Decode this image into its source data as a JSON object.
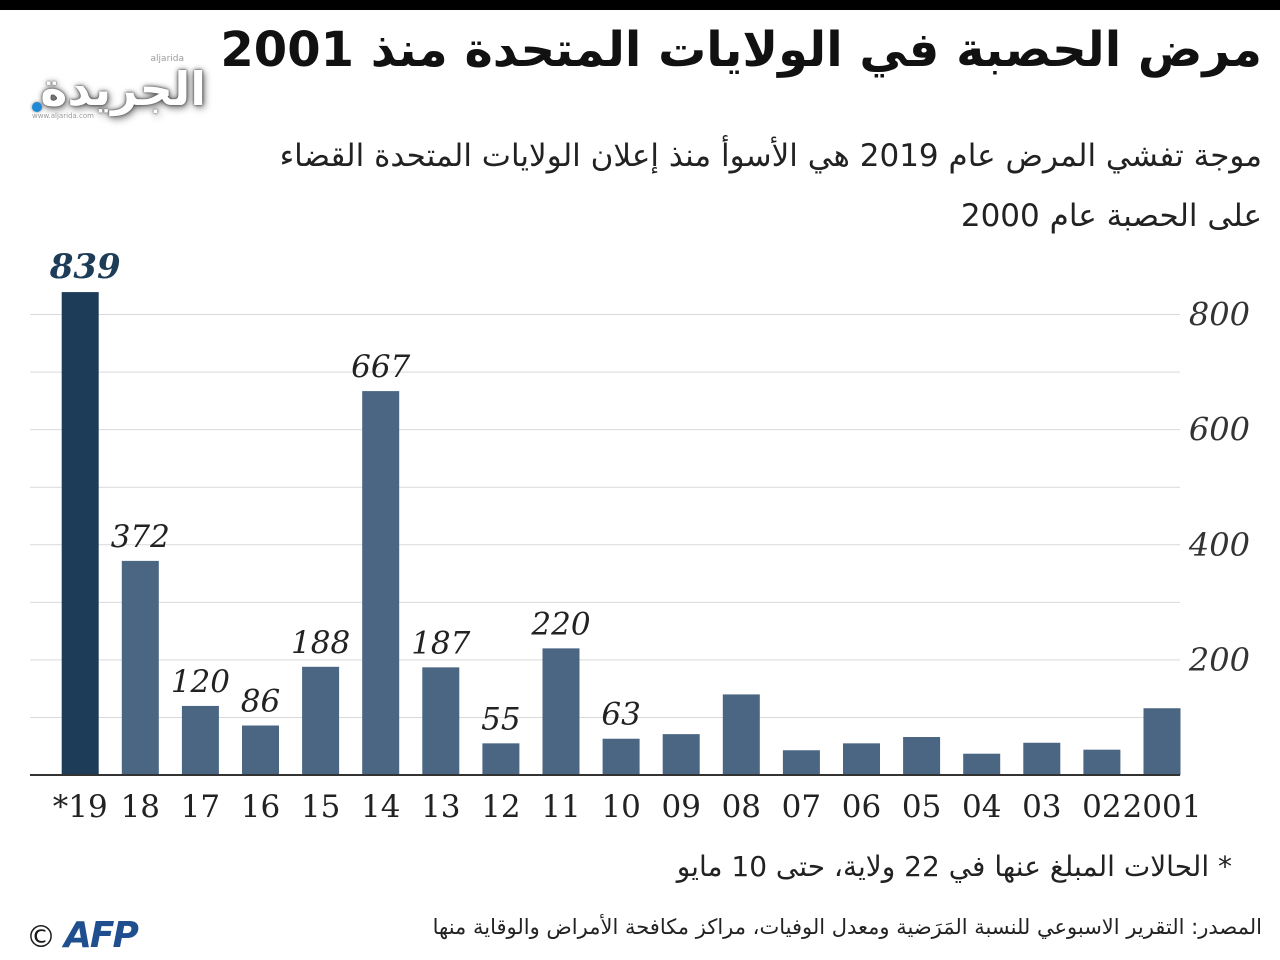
{
  "header": {
    "title": "مرض الحصبة في الولايات المتحدة منذ 2001",
    "subtitle": "موجة تفشي المرض عام 2019 هي الأسوأ منذ إعلان الولايات المتحدة القضاء على الحصبة عام 2000"
  },
  "logo": {
    "name": "الجريدة",
    "latin": "aljarida",
    "url": "www.aljarida.com"
  },
  "chart_data": {
    "type": "bar",
    "categories": [
      "2001",
      "02",
      "03",
      "04",
      "05",
      "06",
      "07",
      "08",
      "09",
      "10",
      "11",
      "12",
      "13",
      "14",
      "15",
      "16",
      "17",
      "18",
      "*19"
    ],
    "values": [
      116,
      44,
      56,
      37,
      66,
      55,
      43,
      140,
      71,
      63,
      220,
      55,
      187,
      667,
      188,
      86,
      120,
      372,
      839
    ],
    "data_labels": [
      "",
      "",
      "",
      "",
      "",
      "",
      "",
      "",
      "",
      "63",
      "220",
      "55",
      "187",
      "667",
      "188",
      "86",
      "120",
      "372",
      "839"
    ],
    "highlight_index": 18,
    "colors": {
      "bar": "#4a6683",
      "highlight": "#1d3c58",
      "grid": "#d9d9d9",
      "axis": "#333333"
    },
    "yticks": [
      "200",
      "400",
      "600",
      "800"
    ],
    "ylim": [
      0,
      860
    ],
    "y_axis_side": "right",
    "grid": true,
    "orientation": "rtl"
  },
  "footnote": "* الحالات المبلغ عنها في 22 ولاية، حتى 10 مايو",
  "source": "المصدر: التقرير الاسبوعي للنسبة المَرَضية ومعدل الوفيات، مراكز مكافحة الأمراض والوقاية منها",
  "credit": {
    "copyright": "©",
    "agency": "AFP"
  }
}
